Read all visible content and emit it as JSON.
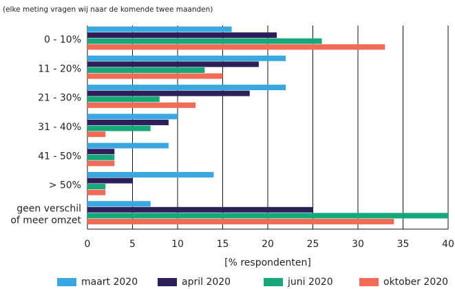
{
  "chart_data": {
    "type": "barh",
    "subtitle": "(elke meting vragen wij naar de komende twee maanden)",
    "xlabel": "[% respondenten]",
    "categories": [
      "0 - 10%",
      "11 - 20%",
      "21 - 30%",
      "31 - 40%",
      "41 - 50%",
      "> 50%",
      "geen verschil\nof meer omzet"
    ],
    "series": [
      {
        "name": "maart 2020",
        "color": "#3aa8e0",
        "values": [
          16,
          22,
          22,
          10,
          9,
          14,
          7
        ]
      },
      {
        "name": "april 2020",
        "color": "#2c1f5a",
        "values": [
          21,
          19,
          18,
          9,
          3,
          5,
          25
        ]
      },
      {
        "name": "juni 2020",
        "color": "#16a87a",
        "values": [
          26,
          13,
          8,
          7,
          3,
          2,
          40
        ]
      },
      {
        "name": "oktober 2020",
        "color": "#f26b57",
        "values": [
          33,
          15,
          12,
          2,
          3,
          2,
          34
        ]
      }
    ],
    "xlim": [
      0,
      40
    ],
    "xticks": [
      0,
      5,
      10,
      15,
      20,
      25,
      30,
      35,
      40
    ],
    "grid": true,
    "legend": "bottom"
  }
}
